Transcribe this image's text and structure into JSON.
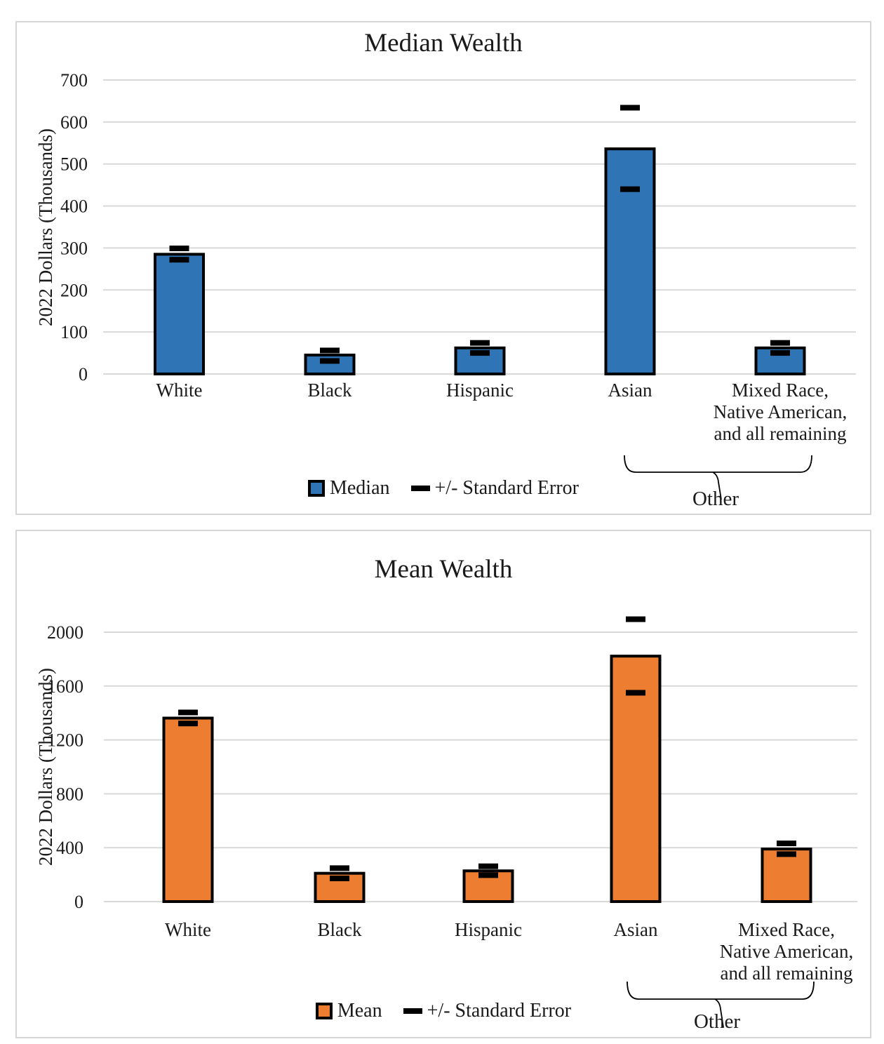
{
  "chart_data": [
    {
      "type": "bar",
      "title": "Median Wealth",
      "ylabel": "2022 Dollars (Thousands)",
      "xlabel": "",
      "categories": [
        "White",
        "Black",
        "Hispanic",
        "Asian",
        "Mixed Race,\nNative American,\nand all remaining"
      ],
      "values": [
        285,
        45,
        62,
        536,
        62
      ],
      "error_low": [
        272,
        31,
        50,
        440,
        50
      ],
      "error_high": [
        299,
        56,
        74,
        634,
        74
      ],
      "ylim": [
        0,
        700
      ],
      "yticks": [
        0,
        100,
        200,
        300,
        400,
        500,
        600,
        700
      ],
      "grid": true,
      "bar_color": "#2f74b5",
      "error_color": "#000000",
      "gridline_color": "#d9d9d9",
      "legend": {
        "series": "Median",
        "error": "+/- Standard Error",
        "position": "bottom"
      },
      "annotation": {
        "label": "Other",
        "spans_categories": [
          "Asian",
          "Mixed Race, Native American, and all remaining"
        ]
      }
    },
    {
      "type": "bar",
      "title": "Mean Wealth",
      "ylabel": "2022 Dollars (Thousands)",
      "xlabel": "",
      "categories": [
        "White",
        "Black",
        "Hispanic",
        "Asian",
        "Mixed Race,\nNative American,\nand all remaining"
      ],
      "values": [
        1362,
        210,
        228,
        1822,
        390
      ],
      "error_low": [
        1322,
        172,
        196,
        1550,
        352
      ],
      "error_high": [
        1404,
        248,
        262,
        2096,
        432
      ],
      "ylim": [
        0,
        2000
      ],
      "yticks": [
        0,
        400,
        800,
        1200,
        1600,
        2000
      ],
      "grid": true,
      "bar_color": "#ed7d31",
      "error_color": "#000000",
      "gridline_color": "#d9d9d9",
      "legend": {
        "series": "Mean",
        "error": "+/- Standard Error",
        "position": "bottom"
      },
      "annotation": {
        "label": "Other",
        "spans_categories": [
          "Asian",
          "Mixed Race, Native American, and all remaining"
        ]
      }
    }
  ]
}
